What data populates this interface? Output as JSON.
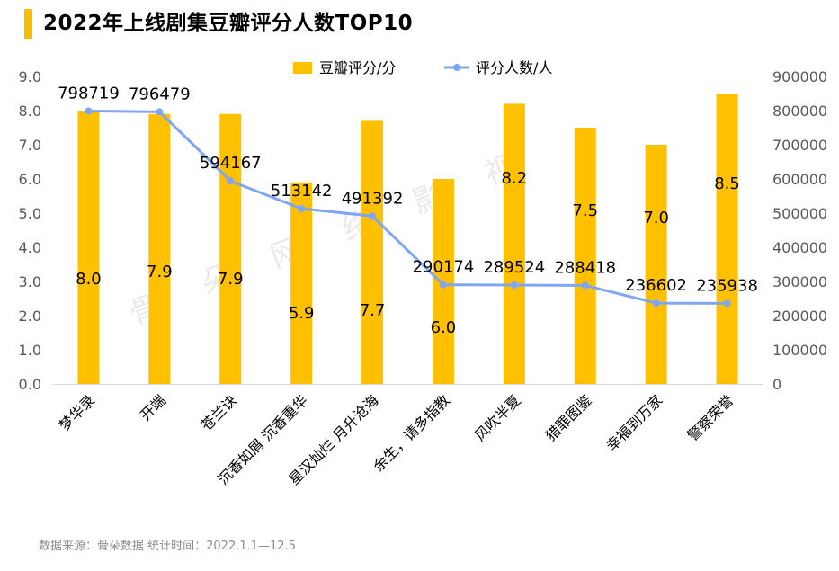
{
  "title": "2022年上线剧集豆瓣评分人数TOP10",
  "footer": "数据来源：骨朵数据   统计时间：2022.1.1—12.5",
  "watermark": [
    "骨",
    "朵",
    "网",
    "络",
    "影",
    "视"
  ],
  "colors": {
    "bar": "#ffc000",
    "line": "#7fa6f5",
    "accent": "#f7bd00"
  },
  "chart_data": {
    "type": "bar",
    "categories": [
      "梦华录",
      "开端",
      "苍兰诀",
      "沉香如屑 沉香重华",
      "星汉灿烂 月升沧海",
      "余生，请多指教",
      "风吹半夏",
      "猎罪图鉴",
      "幸福到万家",
      "警察荣誉"
    ],
    "series": [
      {
        "name": "豆瓣评分/分",
        "type": "bar",
        "axis": "left",
        "values": [
          8.0,
          7.9,
          7.9,
          5.9,
          7.7,
          6.0,
          8.2,
          7.5,
          7.0,
          8.5
        ],
        "labels": [
          "8.0",
          "7.9",
          "7.9",
          "5.9",
          "7.7",
          "6.0",
          "8.2",
          "7.5",
          "7.0",
          "8.5"
        ]
      },
      {
        "name": "评分人数/人",
        "type": "line",
        "axis": "right",
        "values": [
          798719,
          796479,
          594167,
          513142,
          491392,
          290174,
          289524,
          288418,
          236602,
          235938
        ],
        "labels": [
          "798719",
          "796479",
          "594167",
          "513142",
          "491392",
          "290174",
          "289524",
          "288418",
          "236602",
          "235938"
        ]
      }
    ],
    "left_axis": {
      "min": 0,
      "max": 9,
      "ticks": [
        "0.0",
        "1.0",
        "2.0",
        "3.0",
        "4.0",
        "5.0",
        "6.0",
        "7.0",
        "8.0",
        "9.0"
      ]
    },
    "right_axis": {
      "min": 0,
      "max": 900000,
      "ticks": [
        "0",
        "100000",
        "200000",
        "300000",
        "400000",
        "500000",
        "600000",
        "700000",
        "800000",
        "900000"
      ]
    },
    "legend": [
      {
        "label": "豆瓣评分/分",
        "kind": "bar"
      },
      {
        "label": "评分人数/人",
        "kind": "line"
      }
    ],
    "legend_position": "top-center"
  }
}
